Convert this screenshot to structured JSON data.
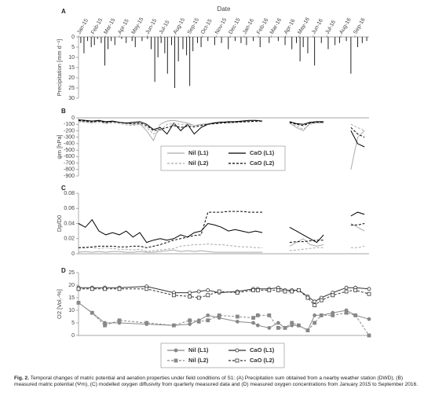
{
  "chart_data": [
    {
      "type": "bar",
      "panel": "A",
      "xlabel": "Date",
      "ylabel": "Precipitation [mm d⁻¹]",
      "color": "#222222",
      "xlim": [
        0,
        640
      ],
      "xticks": [
        {
          "value": 0,
          "label": "Jan-15"
        },
        {
          "value": 31,
          "label": "Feb-15"
        },
        {
          "value": 59,
          "label": "Mar-15"
        },
        {
          "value": 90,
          "label": "Apr-15"
        },
        {
          "value": 120,
          "label": "May-15"
        },
        {
          "value": 151,
          "label": "Jun-15"
        },
        {
          "value": 181,
          "label": "Jul-15"
        },
        {
          "value": 212,
          "label": "Aug-15"
        },
        {
          "value": 243,
          "label": "Sep-15"
        },
        {
          "value": 273,
          "label": "Oct-15"
        },
        {
          "value": 304,
          "label": "Nov-15"
        },
        {
          "value": 334,
          "label": "Dec-15"
        },
        {
          "value": 365,
          "label": "Jan-16"
        },
        {
          "value": 396,
          "label": "Feb-16"
        },
        {
          "value": 425,
          "label": "Mar-16"
        },
        {
          "value": 456,
          "label": "Apr-16"
        },
        {
          "value": 486,
          "label": "May-16"
        },
        {
          "value": 517,
          "label": "Jun-16"
        },
        {
          "value": 547,
          "label": "Jul-16"
        },
        {
          "value": 578,
          "label": "Aug-16"
        },
        {
          "value": 609,
          "label": "Sep-16"
        }
      ],
      "ylim": [
        30,
        0
      ],
      "yticks": [
        0,
        5,
        10,
        15,
        20,
        25,
        30
      ],
      "x": [
        5,
        12,
        20,
        28,
        35,
        42,
        50,
        58,
        65,
        72,
        80,
        95,
        105,
        118,
        125,
        140,
        152,
        160,
        168,
        175,
        182,
        190,
        196,
        205,
        212,
        220,
        230,
        238,
        245,
        252,
        262,
        270,
        285,
        300,
        315,
        330,
        345,
        358,
        370,
        385,
        400,
        420,
        440,
        455,
        470,
        480,
        488,
        495,
        505,
        520,
        535,
        550,
        565,
        575,
        590,
        600,
        615,
        625,
        635
      ],
      "values": [
        3,
        8,
        2,
        5,
        4,
        1,
        3,
        14,
        6,
        2,
        4,
        1,
        3,
        2,
        5,
        2,
        1,
        6,
        22,
        10,
        3,
        8,
        18,
        4,
        25,
        12,
        6,
        9,
        24,
        7,
        3,
        5,
        2,
        4,
        3,
        6,
        2,
        3,
        4,
        2,
        5,
        3,
        2,
        4,
        6,
        3,
        12,
        5,
        8,
        14,
        3,
        6,
        4,
        3,
        2,
        18,
        5,
        3,
        2
      ]
    },
    {
      "type": "line",
      "panel": "B",
      "ylabel": "ψm [hPa]",
      "legend": "lower-right",
      "xlim": [
        0,
        640
      ],
      "ylim": [
        -900,
        0
      ],
      "yticks": [
        0,
        -100,
        -200,
        -300,
        -400,
        -500,
        -600,
        -700,
        -800,
        -900
      ],
      "x": [
        0,
        15,
        30,
        45,
        60,
        75,
        90,
        105,
        120,
        135,
        150,
        165,
        180,
        195,
        210,
        225,
        240,
        255,
        270,
        285,
        300,
        315,
        330,
        345,
        360,
        375,
        390,
        405,
        420,
        435,
        450,
        465,
        480,
        495,
        510,
        525,
        540,
        555,
        570,
        585,
        600,
        615,
        630
      ],
      "series": [
        {
          "name": "Nil (L1)",
          "color": "#aaaaaa",
          "dash": false,
          "values": [
            -50,
            -60,
            -70,
            -50,
            -80,
            -60,
            -70,
            -90,
            -100,
            -90,
            -200,
            -350,
            -100,
            -50,
            -40,
            -60,
            -80,
            -120,
            -100,
            -90,
            -70,
            -60,
            -80,
            -70,
            -60,
            -50,
            -40,
            -50,
            null,
            null,
            null,
            -80,
            -150,
            -200,
            -80,
            -60,
            -70,
            null,
            null,
            null,
            -800,
            -300,
            -200
          ]
        },
        {
          "name": "CaO (L1)",
          "color": "#000000",
          "dash": false,
          "values": [
            -30,
            -40,
            -50,
            -40,
            -60,
            -50,
            -70,
            -80,
            -70,
            -60,
            -100,
            -180,
            -150,
            -250,
            -80,
            -200,
            -100,
            -250,
            -150,
            -100,
            -80,
            -70,
            -60,
            -60,
            -50,
            -40,
            -40,
            -50,
            null,
            null,
            null,
            -60,
            -90,
            -100,
            -70,
            -60,
            -60,
            null,
            null,
            null,
            -200,
            -400,
            -450
          ]
        },
        {
          "name": "Nil (L2)",
          "color": "#aaaaaa",
          "dash": true,
          "values": [
            -60,
            -70,
            -80,
            -70,
            -90,
            -80,
            -90,
            -110,
            -120,
            -100,
            -150,
            -250,
            -200,
            -100,
            -90,
            -100,
            -100,
            -120,
            -110,
            -100,
            -90,
            -80,
            -80,
            -70,
            -70,
            -60,
            -60,
            -60,
            null,
            null,
            null,
            -90,
            -120,
            -180,
            -100,
            -80,
            -80,
            null,
            null,
            null,
            -100,
            -150,
            -200
          ]
        },
        {
          "name": "CaO (L2)",
          "color": "#000000",
          "dash": true,
          "values": [
            -40,
            -50,
            -60,
            -50,
            -70,
            -60,
            -70,
            -80,
            -90,
            -80,
            -120,
            -200,
            -180,
            -150,
            -120,
            -150,
            -130,
            -140,
            -120,
            -100,
            -90,
            -80,
            -70,
            -70,
            -60,
            -60,
            -50,
            -50,
            null,
            null,
            null,
            -70,
            -100,
            -120,
            -80,
            -70,
            -70,
            null,
            null,
            null,
            -150,
            -250,
            -300
          ]
        }
      ]
    },
    {
      "type": "line",
      "panel": "C",
      "ylabel": "Dp/D0",
      "xlim": [
        0,
        640
      ],
      "ylim": [
        0,
        0.08
      ],
      "yticks": [
        0,
        0.02,
        0.04,
        0.06,
        0.08
      ],
      "x": [
        0,
        15,
        30,
        45,
        60,
        75,
        90,
        105,
        120,
        135,
        150,
        165,
        180,
        195,
        210,
        225,
        240,
        255,
        270,
        285,
        300,
        315,
        330,
        345,
        360,
        375,
        390,
        405,
        420,
        435,
        450,
        465,
        480,
        495,
        510,
        525,
        540,
        555,
        570,
        585,
        600,
        615,
        630
      ],
      "series": [
        {
          "name": "Nil (L1)",
          "color": "#aaaaaa",
          "dash": false,
          "values": [
            0.002,
            0.003,
            0.002,
            0.003,
            0.002,
            0.003,
            0.003,
            0.002,
            0.002,
            0.003,
            0.002,
            0.002,
            0.003,
            0.004,
            0.005,
            0.003,
            0.004,
            0.003,
            0.004,
            0.003,
            0.002,
            0.002,
            0.002,
            0.002,
            0.002,
            0.002,
            0.002,
            0.002,
            null,
            null,
            null,
            0.01,
            0.015,
            0.02,
            0.012,
            0.01,
            0.012,
            null,
            null,
            null,
            0.04,
            0.035,
            0.03
          ]
        },
        {
          "name": "CaO (L1)",
          "color": "#000000",
          "dash": false,
          "values": [
            0.04,
            0.035,
            0.045,
            0.03,
            0.025,
            0.028,
            0.025,
            0.03,
            0.022,
            0.028,
            0.015,
            0.018,
            0.02,
            0.018,
            0.02,
            0.025,
            0.022,
            0.028,
            0.03,
            0.04,
            0.038,
            0.035,
            0.03,
            0.032,
            0.03,
            0.028,
            0.03,
            0.028,
            null,
            null,
            null,
            0.035,
            0.03,
            0.025,
            0.02,
            0.015,
            0.025,
            null,
            null,
            null,
            0.05,
            0.055,
            0.052
          ]
        },
        {
          "name": "Nil (L2)",
          "color": "#aaaaaa",
          "dash": true,
          "values": [
            0.008,
            0.009,
            0.008,
            0.007,
            0.008,
            0.007,
            0.006,
            0.006,
            0.005,
            0.006,
            0.003,
            0.004,
            0.005,
            0.006,
            0.007,
            0.01,
            0.011,
            0.012,
            0.012,
            0.013,
            0.012,
            0.012,
            0.011,
            0.01,
            0.009,
            0.009,
            0.008,
            0.008,
            null,
            null,
            null,
            0.004,
            0.005,
            0.006,
            0.007,
            0.008,
            0.008,
            null,
            null,
            null,
            0.008,
            0.008,
            0.01
          ]
        },
        {
          "name": "CaO (L2)",
          "color": "#000000",
          "dash": true,
          "values": [
            0.008,
            0.008,
            0.009,
            0.01,
            0.01,
            0.01,
            0.009,
            0.009,
            0.01,
            0.01,
            0.008,
            0.01,
            0.012,
            0.015,
            0.018,
            0.02,
            0.022,
            0.024,
            0.025,
            0.055,
            0.055,
            0.055,
            0.056,
            0.056,
            0.056,
            0.055,
            0.055,
            0.055,
            null,
            null,
            null,
            0.015,
            0.016,
            0.016,
            0.017,
            0.018,
            0.018,
            null,
            null,
            null,
            0.038,
            0.038,
            0.04
          ]
        }
      ]
    },
    {
      "type": "line",
      "panel": "D",
      "ylabel": "O2 [Vol.-%]",
      "legend": "below",
      "xlim": [
        0,
        640
      ],
      "ylim": [
        0,
        25
      ],
      "yticks": [
        0,
        5,
        10,
        15,
        20,
        25
      ],
      "x": [
        0,
        30,
        58,
        90,
        150,
        210,
        245,
        265,
        285,
        310,
        350,
        385,
        395,
        420,
        440,
        455,
        470,
        485,
        505,
        520,
        535,
        560,
        590,
        610,
        640
      ],
      "series": [
        {
          "name": "Nil (L1)",
          "color": "#888888",
          "dash": false,
          "marker": "circle",
          "marker_open": false,
          "values": [
            13,
            9,
            5,
            5,
            4.5,
            4,
            4.5,
            6,
            8,
            7,
            5.5,
            5,
            4,
            3,
            5,
            3,
            4,
            4,
            2,
            8,
            8,
            9,
            10,
            8,
            6.5
          ]
        },
        {
          "name": "CaO (L1)",
          "color": "#333333",
          "dash": false,
          "marker": "circle",
          "marker_open": true,
          "values": [
            19,
            19,
            19,
            19,
            19.5,
            17,
            17,
            17.5,
            18,
            17,
            17.5,
            18.5,
            18.5,
            18.5,
            19,
            18,
            18,
            18,
            15.5,
            13.5,
            15,
            17,
            19,
            19,
            18.5
          ]
        },
        {
          "name": "Nil (L2)",
          "color": "#888888",
          "dash": true,
          "marker": "square",
          "marker_open": false,
          "values": [
            13,
            9,
            4,
            6,
            5,
            4,
            6,
            5.5,
            6,
            8,
            7.5,
            7,
            8,
            8,
            3,
            3,
            5,
            4,
            2,
            5,
            8,
            8,
            9,
            8,
            0
          ]
        },
        {
          "name": "CaO (L2)",
          "color": "#333333",
          "dash": true,
          "marker": "square",
          "marker_open": true,
          "values": [
            18.5,
            18.5,
            18.5,
            18.5,
            18.5,
            16,
            15.5,
            15,
            16,
            17.5,
            17,
            18,
            18,
            18,
            18,
            17.5,
            17.5,
            18,
            15,
            12,
            14,
            16,
            17.5,
            18,
            16.5
          ]
        }
      ]
    }
  ],
  "caption": {
    "label": "Fig. 2.",
    "text": "Temporal changes of matric potential and aeration properties under field conditions of S1: (A) Precipitation sum obtained from a nearby weather station (DWD), (B) measured matric potential (Ψm), (C) modelled oxygen diffusivity from quarterly measured data and (D) measured oxygen concentrations from January 2015 to September 2016."
  }
}
